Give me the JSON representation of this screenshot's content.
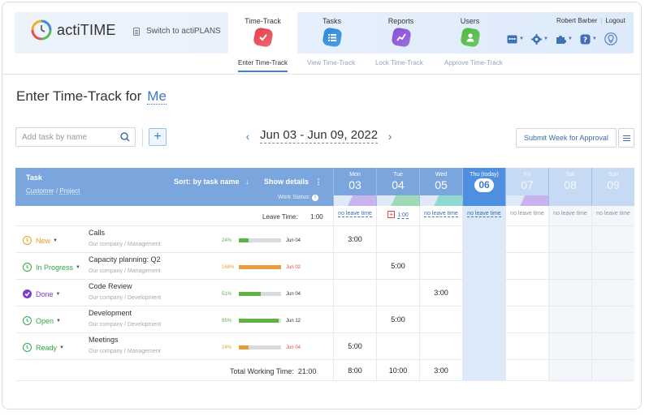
{
  "app": {
    "name": "actiTIME",
    "switch_label": "Switch to actiPLANS"
  },
  "modules": [
    {
      "label": "Time-Track",
      "color": "#e8404e"
    },
    {
      "label": "Tasks",
      "color": "#2a8ad8"
    },
    {
      "label": "Reports",
      "color": "#8a4fd8"
    },
    {
      "label": "Users",
      "color": "#4fbb3f"
    }
  ],
  "user": {
    "name": "Robert Barber",
    "logout": "Logout"
  },
  "tool_icons": [
    "calendar-icon",
    "gear-icon",
    "puzzle-icon",
    "help-icon",
    "lightbulb-icon"
  ],
  "subnav": [
    "Enter Time-Track",
    "View Time-Track",
    "Lock Time-Track",
    "Approve Time-Track"
  ],
  "page": {
    "title": "Enter Time-Track for",
    "who": "Me"
  },
  "toolbar": {
    "search_placeholder": "Add task by name",
    "plus": "+",
    "prev": "‹",
    "next": "›",
    "range": "Jun 03 - Jun 09, 2022",
    "submit": "Submit Week for Approval"
  },
  "grid": {
    "task_label": "Task",
    "customer": "Customer",
    "slash": "/",
    "project": "Project",
    "sort": "Sort: by task name",
    "sort_arrow": "↓",
    "show": "Show details",
    "show_dots": "⋮",
    "work_status": "Work Status:",
    "leave_label": "Leave Time:",
    "leave_total": "1:00",
    "total_label": "Total Working Time:",
    "total_value": "21:00"
  },
  "days": [
    {
      "name": "Mon",
      "num": "03",
      "leave": "no leave time",
      "status_color": "#c9b3ef",
      "total": "8:00"
    },
    {
      "name": "Tue",
      "num": "04",
      "leave": "1:00",
      "status_color": "#9fd9b8",
      "total": "10:00"
    },
    {
      "name": "Wed",
      "num": "05",
      "leave": "no leave time",
      "status_color": "#8fd9d3",
      "total": "3:00"
    },
    {
      "name": "Thu (today)",
      "num": "06",
      "leave": "no leave time",
      "status_color": "",
      "total": ""
    },
    {
      "name": "Fri",
      "num": "07",
      "leave": "no leave time",
      "status_color": "#c9b3ef",
      "total": ""
    },
    {
      "name": "Sat",
      "num": "08",
      "leave": "no leave time",
      "status_color": "",
      "total": ""
    },
    {
      "name": "Sun",
      "num": "09",
      "leave": "no leave time",
      "status_color": "",
      "total": ""
    }
  ],
  "tasks": [
    {
      "status": "New",
      "status_color": "#e8a317",
      "name": "Calls",
      "company": "Our company",
      "project": "Management",
      "progress_label": "24%",
      "progress": 0.24,
      "bar_color": "#5eb346",
      "deadline": "Jun 04",
      "deadline_color": "#333",
      "times": [
        "3:00",
        "",
        "",
        "",
        "",
        "",
        ""
      ]
    },
    {
      "status": "In Progress",
      "status_color": "#2ea84a",
      "name": "Capacity planning: Q2",
      "company": "Our company",
      "project": "Management",
      "progress_label": "168%",
      "progress": 1.0,
      "bar_color": "#e89d3a",
      "deadline": "Jun 02",
      "deadline_color": "#e0484a",
      "times": [
        "",
        "5:00",
        "",
        "",
        "",
        "",
        ""
      ]
    },
    {
      "status": "Done",
      "status_color": "#7a3fd0",
      "name": "Code Review",
      "company": "Our company",
      "project": "Development",
      "progress_label": "51%",
      "progress": 0.51,
      "bar_color": "#5eb346",
      "deadline": "Jun 04",
      "deadline_color": "#333",
      "times": [
        "",
        "",
        "3:00",
        "",
        "",
        "",
        ""
      ]
    },
    {
      "status": "Open",
      "status_color": "#2ea84a",
      "name": "Development",
      "company": "Our company",
      "project": "Development",
      "progress_label": "95%",
      "progress": 0.95,
      "bar_color": "#5eb346",
      "deadline": "Jun 12",
      "deadline_color": "#333",
      "times": [
        "",
        "5:00",
        "",
        "",
        "",
        "",
        ""
      ]
    },
    {
      "status": "Ready",
      "status_color": "#2ea84a",
      "name": "Meetings",
      "company": "Our company",
      "project": "Management",
      "progress_label": "24%",
      "progress": 0.24,
      "bar_color": "#e89d3a",
      "deadline": "Jun 04",
      "deadline_color": "#e0484a",
      "times": [
        "5:00",
        "",
        "",
        "",
        "",
        "",
        ""
      ]
    }
  ]
}
